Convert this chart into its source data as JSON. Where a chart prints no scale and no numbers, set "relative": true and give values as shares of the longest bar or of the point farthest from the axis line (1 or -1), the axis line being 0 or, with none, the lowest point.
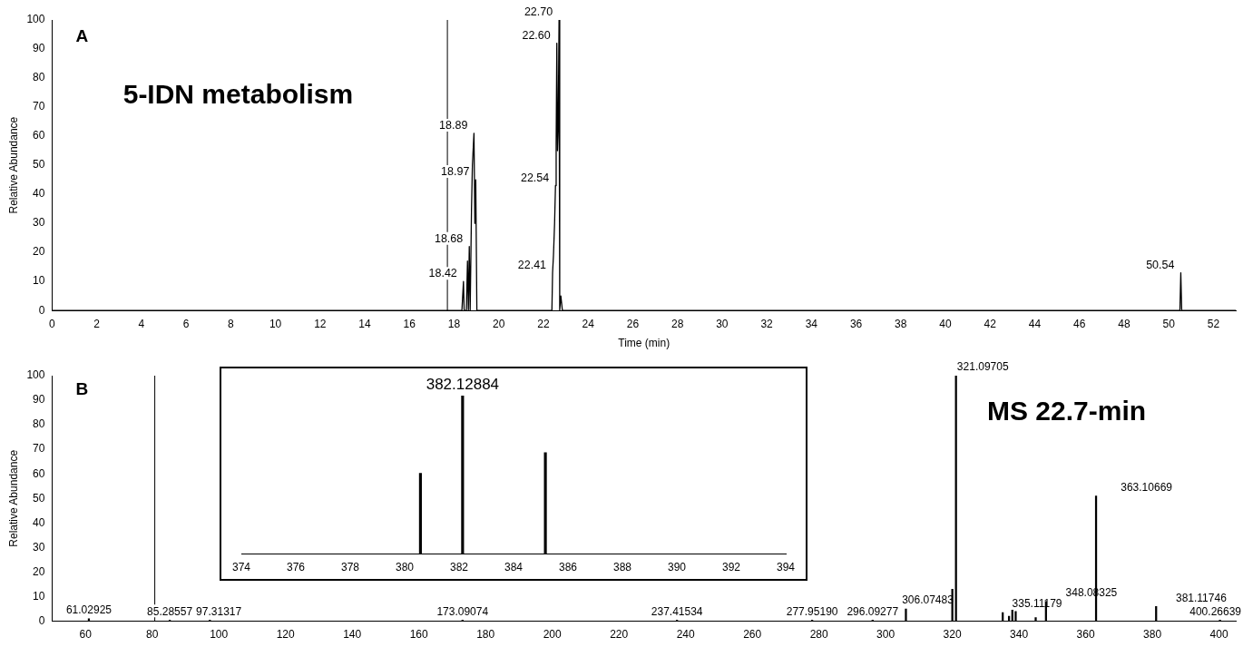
{
  "chart_data": [
    {
      "type": "line",
      "xlabel": "Time (min)",
      "ylabel": "Relative Abundance",
      "xlim": [
        0,
        53
      ],
      "xticks": [
        0,
        2,
        4,
        6,
        8,
        10,
        12,
        14,
        16,
        18,
        20,
        22,
        24,
        26,
        28,
        30,
        32,
        34,
        36,
        38,
        40,
        42,
        44,
        46,
        48,
        50,
        52
      ],
      "ylim": [
        0,
        100
      ],
      "yticks": [
        0,
        10,
        20,
        30,
        40,
        50,
        60,
        70,
        80,
        90,
        100
      ],
      "series": [
        {
          "color": "#000000",
          "x": [
            0,
            18.35,
            18.42,
            18.45,
            18.55,
            18.6,
            18.64,
            18.68,
            18.72,
            18.78,
            18.82,
            18.89,
            18.93,
            18.97,
            19.02,
            22.38,
            22.41,
            22.45,
            22.5,
            22.54,
            22.57,
            22.6,
            22.63,
            22.66,
            22.7,
            22.73,
            22.78,
            22.85,
            50.5,
            50.54,
            50.58,
            53
          ],
          "values": [
            0,
            0,
            10,
            0,
            0,
            17,
            0,
            22,
            0,
            35,
            50,
            61,
            30,
            45,
            0,
            0,
            13,
            19,
            30,
            43,
            57,
            92,
            55,
            62,
            100,
            0,
            5,
            0,
            0,
            13,
            0,
            0
          ]
        }
      ],
      "ref_lines": [
        {
          "axis": "x",
          "value": 17.7
        }
      ],
      "annotations": [
        "A",
        "5-IDN metabolism",
        {
          "text": "18.42",
          "x": 18.42,
          "y": 10
        },
        {
          "text": "18.68",
          "x": 18.68,
          "y": 22
        },
        {
          "text": "18.89",
          "x": 18.89,
          "y": 61
        },
        {
          "text": "18.97",
          "x": 18.97,
          "y": 45
        },
        {
          "text": "22.41",
          "x": 22.41,
          "y": 13
        },
        {
          "text": "22.54",
          "x": 22.54,
          "y": 43
        },
        {
          "text": "22.60",
          "x": 22.6,
          "y": 92
        },
        {
          "text": "22.70",
          "x": 22.7,
          "y": 100
        },
        {
          "text": "50.54",
          "x": 50.54,
          "y": 13
        }
      ]
    },
    {
      "type": "bar",
      "ylabel": "Relative Abundance",
      "xlim": [
        50,
        405
      ],
      "xticks": [
        60,
        80,
        100,
        120,
        140,
        160,
        180,
        200,
        220,
        240,
        260,
        280,
        300,
        320,
        340,
        360,
        380,
        400
      ],
      "ylim": [
        0,
        100
      ],
      "yticks": [
        0,
        10,
        20,
        30,
        40,
        50,
        60,
        70,
        80,
        90,
        100
      ],
      "x": [
        61.02925,
        85.28557,
        97.31317,
        173.09074,
        237.41534,
        277.9519,
        296.09277,
        306.07483,
        320,
        321.09705,
        335.11179,
        337,
        338,
        339,
        345,
        348.08325,
        363.10669,
        381.11746,
        400.26639
      ],
      "values": [
        1,
        0.5,
        0.5,
        0.5,
        0.5,
        0.5,
        0.5,
        5,
        13,
        100,
        3.5,
        2,
        4.5,
        4,
        1.5,
        8,
        51,
        6,
        0.5
      ],
      "color": "#000000",
      "ref_lines": [
        {
          "axis": "x",
          "value": 80.8
        }
      ],
      "annotations": [
        "B",
        "MS 22.7-min",
        {
          "text": "61.02925",
          "x": 61.02925,
          "y": 1
        },
        {
          "text": "85.28557",
          "x": 85.28557,
          "y": 0.5
        },
        {
          "text": "97.31317",
          "x": 97.31317,
          "y": 0.5
        },
        {
          "text": "173.09074",
          "x": 173.09074,
          "y": 0.5
        },
        {
          "text": "237.41534",
          "x": 237.41534,
          "y": 0.5
        },
        {
          "text": "277.95190",
          "x": 277.9519,
          "y": 0.5
        },
        {
          "text": "296.09277",
          "x": 296.09277,
          "y": 0.5
        },
        {
          "text": "306.07483",
          "x": 306.07483,
          "y": 5
        },
        {
          "text": "321.09705",
          "x": 321.09705,
          "y": 100
        },
        {
          "text": "335.11179",
          "x": 335.11179,
          "y": 3.5
        },
        {
          "text": "348.08325",
          "x": 348.08325,
          "y": 8
        },
        {
          "text": "363.10669",
          "x": 363.10669,
          "y": 51
        },
        {
          "text": "381.11746",
          "x": 381.11746,
          "y": 6
        },
        {
          "text": "400.26639",
          "x": 400.26639,
          "y": 0.5
        }
      ]
    },
    {
      "type": "bar",
      "relative": true,
      "xlim": [
        374,
        394
      ],
      "xticks": [
        374,
        376,
        378,
        380,
        382,
        384,
        386,
        388,
        390,
        392,
        394
      ],
      "x": [
        380.58,
        382.12884,
        385.17
      ],
      "values": [
        0.51,
        1,
        0.64
      ],
      "color": "#000000",
      "annotations": [
        {
          "text": "382.12884",
          "x": 382.12884,
          "y": 1
        }
      ]
    }
  ]
}
